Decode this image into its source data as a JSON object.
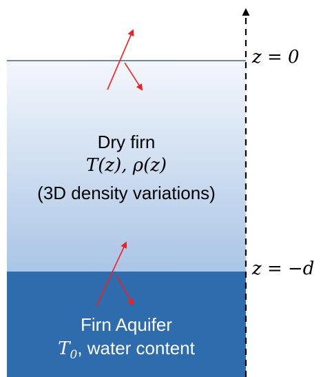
{
  "colors": {
    "firn_top": "#f4f7fc",
    "firn_bottom": "#aac5e6",
    "aquifer": "#2e6cad",
    "arrow": "#ff1a1a",
    "axis": "#000000"
  },
  "surface_label": "z = 0",
  "aquifer_top_label": "z = −d",
  "dry_firn": {
    "title": "Dry firn",
    "properties": "T(z), ρ(z)",
    "note": "(3D density variations)"
  },
  "aquifer": {
    "title": "Firn Aquifer",
    "properties_symbol": "T",
    "properties_subscript": "0",
    "properties_rest": ", water content"
  }
}
